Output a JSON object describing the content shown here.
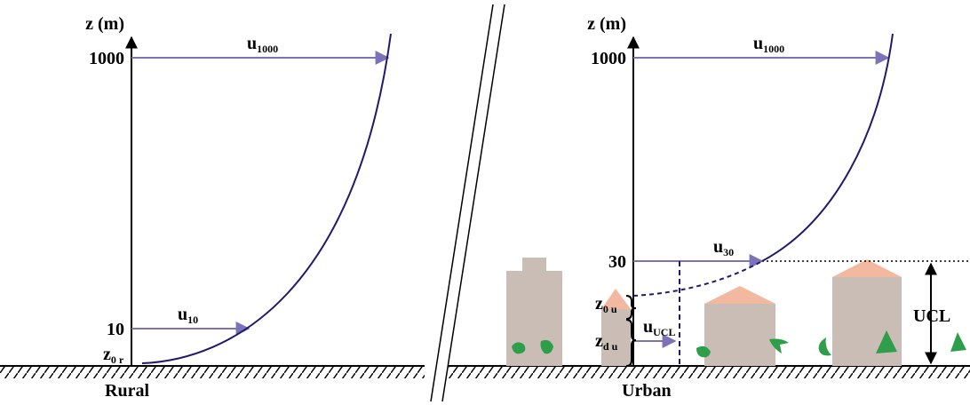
{
  "rural": {
    "axis_label": "z (m)",
    "tick_1000": "1000",
    "tick_10": "10",
    "z0": {
      "base": "z",
      "sub": "0 r"
    },
    "u1000": {
      "base": "u",
      "sub": "1000"
    },
    "u10": {
      "base": "u",
      "sub": "10"
    },
    "caption": "Rural"
  },
  "urban": {
    "axis_label": "z (m)",
    "tick_1000": "1000",
    "tick_30": "30",
    "u1000": {
      "base": "u",
      "sub": "1000"
    },
    "u30": {
      "base": "u",
      "sub": "30"
    },
    "z0": {
      "base": "z",
      "sub": "0 u"
    },
    "zd": {
      "base": "z",
      "sub": "d u"
    },
    "uucl": {
      "base": "u",
      "sub": "UCL"
    },
    "ucl": "UCL",
    "caption": "Urban"
  }
}
